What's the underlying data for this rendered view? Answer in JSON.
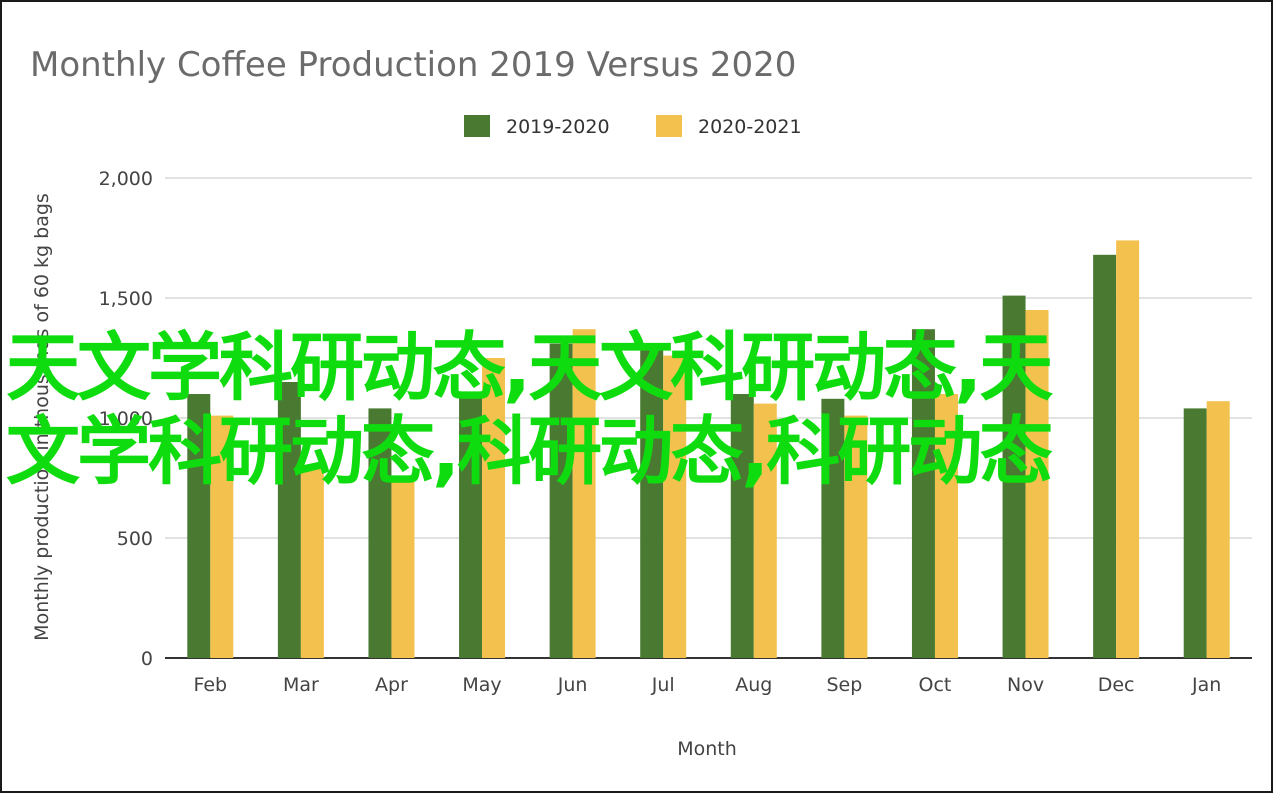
{
  "chart_data": {
    "type": "bar",
    "title": "Monthly Coffee Production 2019 Versus 2020",
    "xlabel": "Month",
    "ylabel": "Monthly production in thousands of 60 kg bags",
    "ylim": [
      0,
      2000
    ],
    "yticks": [
      "0",
      "500",
      "1,000",
      "1,500",
      "2,000"
    ],
    "grid": true,
    "legend_position": "top",
    "categories": [
      "Feb",
      "Mar",
      "Apr",
      "May",
      "Jun",
      "Jul",
      "Aug",
      "Sep",
      "Oct",
      "Nov",
      "Dec",
      "Jan"
    ],
    "series": [
      {
        "name": "2019-2020",
        "color": "#4a7a32",
        "values": [
          1100,
          1150,
          1040,
          1100,
          1310,
          1310,
          1100,
          1080,
          1370,
          1510,
          1680,
          1040
        ]
      },
      {
        "name": "2020-2021",
        "color": "#f2c14e",
        "values": [
          1010,
          800,
          740,
          1250,
          1370,
          1260,
          1060,
          1010,
          1100,
          1450,
          1740,
          1070
        ]
      }
    ]
  },
  "overlay": {
    "line1": "天文学科研动态,天文科研动态,天",
    "line2": "文学科研动态,科研动态,科研动态",
    "color": "#0fdc0f"
  }
}
